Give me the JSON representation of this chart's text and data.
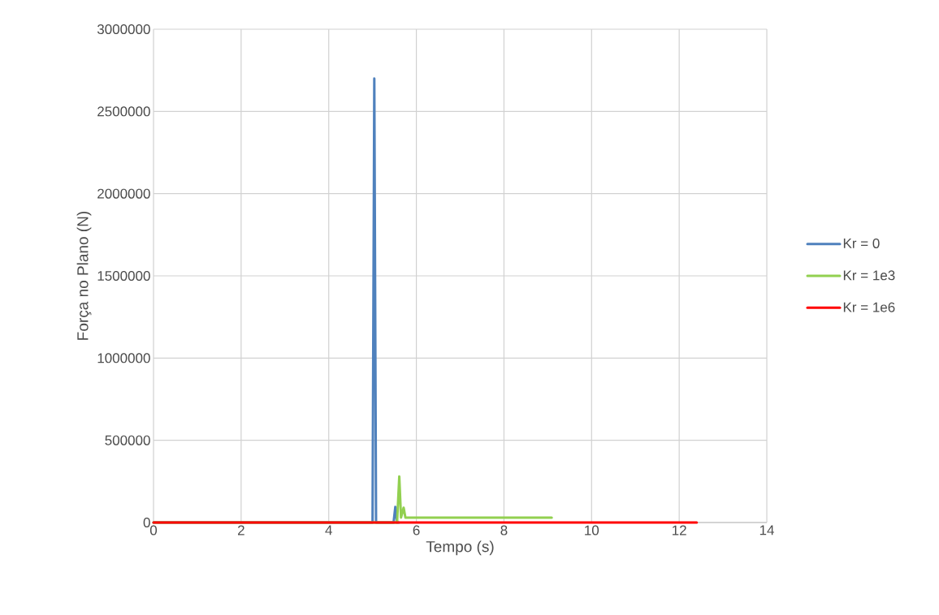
{
  "chart_data": {
    "type": "line",
    "xlabel": "Tempo (s)",
    "ylabel": "Força no Plano (N)",
    "xlim": [
      0,
      14
    ],
    "xticks": [
      0,
      2,
      4,
      6,
      8,
      10,
      12,
      14
    ],
    "ylim": [
      0,
      3000000
    ],
    "yticks": [
      0,
      500000,
      1000000,
      1500000,
      2000000,
      2500000,
      3000000
    ],
    "grid": true,
    "legend": "right",
    "marker": "none",
    "line_style": "solid",
    "series": [
      {
        "name": "Kr = 0",
        "color": "#4f81bd",
        "x": [
          0,
          5.0,
          5.04,
          5.08,
          5.48,
          5.52,
          5.56,
          5.6
        ],
        "values": [
          0,
          0,
          2700000,
          0,
          0,
          95000,
          0,
          0
        ]
      },
      {
        "name": "Kr = 1e3",
        "color": "#92d050",
        "x": [
          0,
          5.56,
          5.61,
          5.65,
          5.71,
          5.75,
          6.0,
          9.09
        ],
        "values": [
          0,
          0,
          280000,
          30000,
          90000,
          30000,
          30000,
          30000
        ]
      },
      {
        "name": "Kr = 1e6",
        "color": "#ff0000",
        "x": [
          0,
          12.4
        ],
        "values": [
          0,
          0
        ]
      }
    ]
  }
}
